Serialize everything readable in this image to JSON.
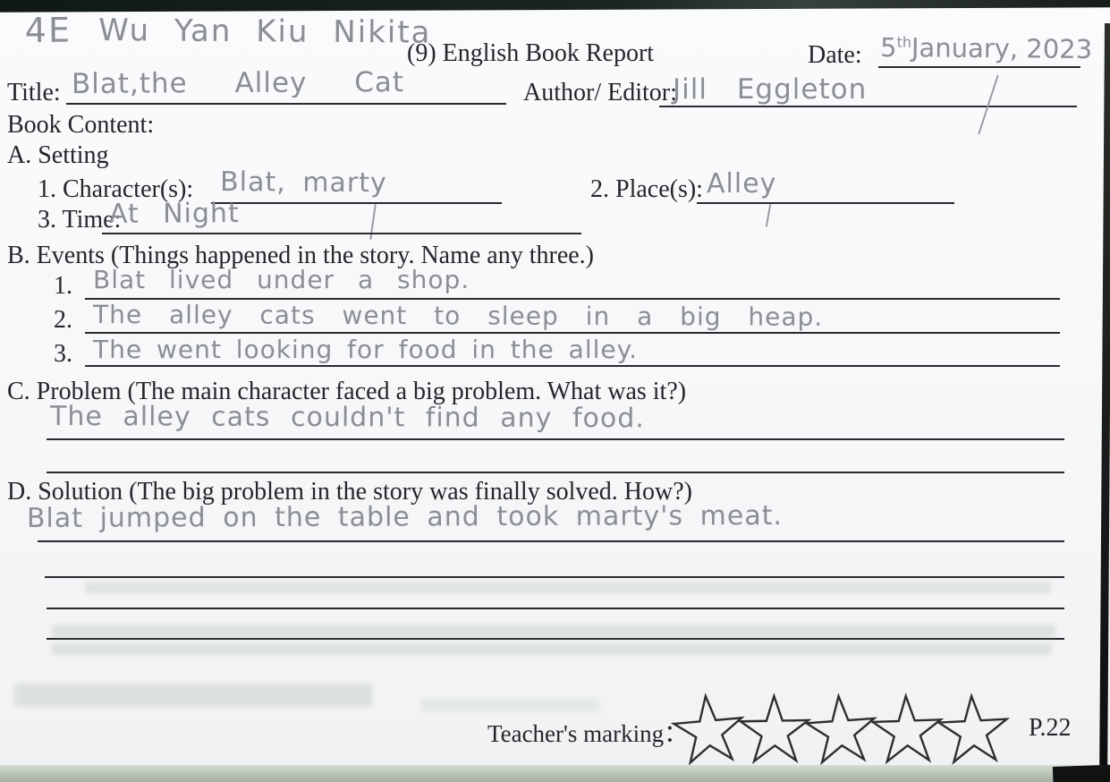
{
  "header": {
    "class_label": "4E",
    "student_name": "Wu Yan Kiu Nikita",
    "form_title": "(9) English Book Report",
    "date": {
      "label": "Date:",
      "day": "5",
      "ordinal": "th",
      "rest": "January, 2023"
    },
    "title_field": {
      "label": "Title:",
      "value": "Blat,the Alley Cat"
    },
    "author_field": {
      "label": "Author/ Editor:",
      "value": "Jill Eggleton"
    }
  },
  "book_content": {
    "heading": "Book Content:",
    "section_a": {
      "heading": "A. Setting",
      "characters": {
        "label": "1. Character(s):",
        "value": "Blat, marty"
      },
      "places": {
        "label": "2. Place(s):",
        "value": "Alley"
      },
      "time": {
        "label": "3. Time:",
        "value": "At Night"
      }
    },
    "section_b": {
      "heading": "B. Events (Things happened in the story. Name any three.)",
      "events": [
        {
          "number": "1.",
          "value": "Blat lived under a shop."
        },
        {
          "number": "2.",
          "value": "The alley cats went to sleep in a big heap."
        },
        {
          "number": "3.",
          "value": "The went looking for food in the alley."
        }
      ]
    },
    "section_c": {
      "heading": "C. Problem (The main character faced a big problem. What was it?)",
      "answer": "The alley cats couldn't find any food."
    },
    "section_d": {
      "heading": "D. Solution (The big problem in the story was finally solved. How?)",
      "answer": "Blat jumped on the table and took marty's meat."
    }
  },
  "footer": {
    "teacher_marking_label": "Teacher's marking：",
    "star_count": 5,
    "page_number": "P.22"
  },
  "colors": {
    "paper": "#f8f9fb",
    "printed_ink": "#26262a",
    "pencil": "#8b8e93",
    "rule_line": "#2a2a2e",
    "scan_edge": "#141b17"
  }
}
